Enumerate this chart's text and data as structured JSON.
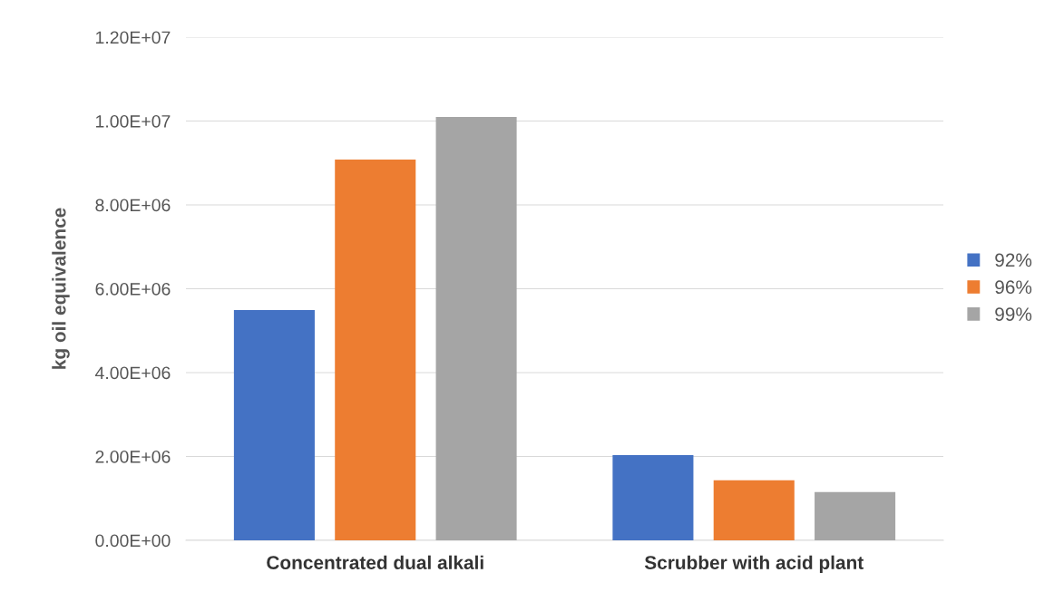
{
  "chart_data": {
    "type": "bar",
    "ylabel": "kg oil equivalence",
    "categories": [
      "Concentrated dual alkali",
      "Scrubber with acid plant"
    ],
    "series": [
      {
        "name": "92%",
        "color": "#4472c4",
        "values": [
          5490000.0,
          2030000.0
        ]
      },
      {
        "name": "96%",
        "color": "#ed7d31",
        "values": [
          9080000.0,
          1430000.0
        ]
      },
      {
        "name": "99%",
        "color": "#a5a5a5",
        "values": [
          10100000.0,
          1150000.0
        ]
      }
    ],
    "ylim": [
      0,
      12000000.0
    ],
    "yticks": [
      {
        "value": 0,
        "label": "0.00E+00"
      },
      {
        "value": 2000000.0,
        "label": "2.00E+06"
      },
      {
        "value": 4000000.0,
        "label": "4.00E+06"
      },
      {
        "value": 6000000.0,
        "label": "6.00E+06"
      },
      {
        "value": 8000000.0,
        "label": "8.00E+06"
      },
      {
        "value": 10000000.0,
        "label": "1.00E+07"
      },
      {
        "value": 12000000.0,
        "label": "1.20E+07"
      }
    ],
    "grid": "y",
    "legend": "right"
  }
}
